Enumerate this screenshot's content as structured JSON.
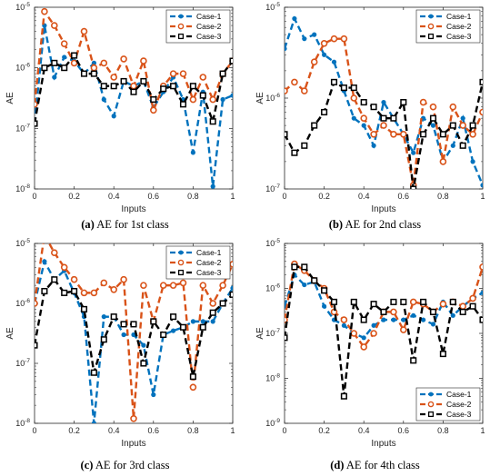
{
  "captions": [
    {
      "letter": "(a)",
      "text": " AE for 1st class"
    },
    {
      "letter": "(b)",
      "text": " AE for 2nd class"
    },
    {
      "letter": "(c)",
      "text": " AE for 3rd class"
    },
    {
      "letter": "(d)",
      "text": " AE for 4th class"
    }
  ],
  "colors": {
    "Case-1": "#0072BD",
    "Case-2": "#D95319",
    "Case-3": "#000000"
  },
  "chart_data": [
    {
      "type": "line",
      "xlabel": "Inputs",
      "ylabel": "AE",
      "yscale": "log",
      "xlim": [
        0,
        1
      ],
      "xticks": [
        0,
        0.2,
        0.4,
        0.6,
        0.8,
        1
      ],
      "ylim_exp": [
        -8,
        -5
      ],
      "legend": "top-right",
      "x": [
        0,
        0.05,
        0.1,
        0.15,
        0.2,
        0.25,
        0.3,
        0.35,
        0.4,
        0.45,
        0.5,
        0.55,
        0.6,
        0.65,
        0.7,
        0.75,
        0.8,
        0.85,
        0.9,
        0.95,
        1
      ],
      "series": [
        {
          "name": "Case-1",
          "values": [
            1.2e-07,
            5e-06,
            7e-07,
            1.5e-06,
            1.3e-06,
            8e-07,
            1.2e-06,
            3e-07,
            1.6e-07,
            6e-07,
            5e-07,
            6e-07,
            2.2e-07,
            4e-07,
            7e-07,
            3e-07,
            4e-08,
            4e-07,
            1.1e-08,
            3e-07,
            3.5e-07
          ]
        },
        {
          "name": "Case-2",
          "values": [
            2.5e-07,
            8.5e-06,
            5e-06,
            2.5e-06,
            1.2e-06,
            4e-06,
            1e-06,
            1.2e-06,
            7e-07,
            1.4e-06,
            5e-07,
            1.3e-06,
            2e-07,
            5e-07,
            8e-07,
            8e-07,
            3e-07,
            7e-07,
            3e-07,
            8e-07,
            1.3e-06
          ]
        },
        {
          "name": "Case-3",
          "values": [
            1.2e-07,
            1e-06,
            1.2e-06,
            1e-06,
            1.6e-06,
            8e-07,
            8e-07,
            5e-07,
            5e-07,
            6e-07,
            4e-07,
            6e-07,
            3e-07,
            4.5e-07,
            5e-07,
            2.5e-07,
            5e-07,
            3.5e-07,
            1.3e-07,
            8e-07,
            1.3e-06
          ]
        }
      ]
    },
    {
      "type": "line",
      "xlabel": "Inputs",
      "ylabel": "AE",
      "yscale": "log",
      "xlim": [
        0,
        1
      ],
      "xticks": [
        0,
        0.2,
        0.4,
        0.6,
        0.8,
        1
      ],
      "ylim_exp": [
        -7,
        -5
      ],
      "legend": "top-right",
      "x": [
        0,
        0.05,
        0.1,
        0.15,
        0.2,
        0.25,
        0.3,
        0.35,
        0.4,
        0.45,
        0.5,
        0.55,
        0.6,
        0.65,
        0.7,
        0.75,
        0.8,
        0.85,
        0.9,
        0.95,
        1
      ],
      "series": [
        {
          "name": "Case-1",
          "values": [
            3.5e-06,
            7.5e-06,
            4.5e-06,
            5e-06,
            3e-06,
            2.5e-06,
            1.2e-06,
            6e-07,
            5e-07,
            3e-07,
            9e-07,
            6e-07,
            4e-07,
            2.5e-07,
            6e-07,
            5e-07,
            2e-07,
            3e-07,
            6e-07,
            2e-07,
            1.1e-07
          ]
        },
        {
          "name": "Case-2",
          "values": [
            1.2e-06,
            1.5e-06,
            1.2e-06,
            2.5e-06,
            4e-06,
            4.5e-06,
            4.5e-06,
            1e-06,
            6e-07,
            4e-07,
            5e-07,
            4e-07,
            4e-07,
            1.1e-07,
            9e-07,
            8e-07,
            2e-07,
            8e-07,
            5e-07,
            4e-07,
            7e-07
          ]
        },
        {
          "name": "Case-3",
          "values": [
            4e-07,
            2.5e-07,
            3e-07,
            5e-07,
            7e-07,
            1.5e-06,
            1.3e-06,
            1.3e-06,
            9e-07,
            8e-07,
            6e-07,
            6e-07,
            9e-07,
            1e-07,
            4e-07,
            6e-07,
            4e-07,
            5e-07,
            3e-07,
            5e-07,
            1.5e-06
          ]
        }
      ]
    },
    {
      "type": "line",
      "xlabel": "Inputs",
      "ylabel": "AE",
      "yscale": "log",
      "xlim": [
        0,
        1
      ],
      "xticks": [
        0,
        0.2,
        0.4,
        0.6,
        0.8,
        1
      ],
      "ylim_exp": [
        -8,
        -5
      ],
      "legend": "top-right",
      "x": [
        0,
        0.05,
        0.1,
        0.15,
        0.2,
        0.25,
        0.3,
        0.35,
        0.4,
        0.45,
        0.5,
        0.55,
        0.6,
        0.65,
        0.7,
        0.75,
        0.8,
        0.85,
        0.9,
        0.95,
        1
      ],
      "series": [
        {
          "name": "Case-1",
          "values": [
            1e-06,
            5e-06,
            2.5e-06,
            3.5e-06,
            1.5e-06,
            6e-07,
            1e-08,
            6e-07,
            6e-07,
            3e-07,
            3e-07,
            2e-07,
            3e-08,
            3e-07,
            3.5e-07,
            4e-07,
            5e-07,
            5e-07,
            5e-07,
            1e-06,
            1.8e-06
          ]
        },
        {
          "name": "Case-2",
          "values": [
            1e-06,
            1.4e-05,
            7e-06,
            4e-06,
            2.5e-06,
            1.5e-06,
            1.5e-06,
            2.2e-06,
            1.7e-06,
            2.5e-06,
            1.2e-08,
            2e-06,
            5e-07,
            2e-06,
            2e-06,
            2.2e-06,
            4e-08,
            2e-06,
            1e-06,
            2e-06,
            4.5e-06
          ]
        },
        {
          "name": "Case-3",
          "values": [
            2e-07,
            1.6e-06,
            2.5e-06,
            1.5e-06,
            1.6e-06,
            8e-07,
            7e-08,
            2.5e-07,
            6e-07,
            4.5e-07,
            4.5e-07,
            1e-07,
            5e-07,
            3e-07,
            6e-07,
            4e-07,
            6e-08,
            4e-07,
            7e-07,
            1e-06,
            1.4e-06
          ]
        }
      ]
    },
    {
      "type": "line",
      "xlabel": "Inputs",
      "ylabel": "AE",
      "yscale": "log",
      "xlim": [
        0,
        1
      ],
      "xticks": [
        0,
        0.2,
        0.4,
        0.6,
        0.8,
        1
      ],
      "ylim_exp": [
        -9,
        -5
      ],
      "legend": "bottom-right",
      "x": [
        0,
        0.05,
        0.1,
        0.15,
        0.2,
        0.25,
        0.3,
        0.35,
        0.4,
        0.45,
        0.5,
        0.55,
        0.6,
        0.65,
        0.7,
        0.75,
        0.8,
        0.85,
        0.9,
        0.95,
        1
      ],
      "series": [
        {
          "name": "Case-1",
          "values": [
            4e-07,
            2e-06,
            1.2e-06,
            1.4e-06,
            4e-07,
            2e-07,
            1.5e-07,
            1e-07,
            8e-08,
            1.5e-07,
            2e-07,
            2e-07,
            2e-07,
            2.5e-07,
            2e-07,
            1.6e-07,
            5e-07,
            2.5e-07,
            4e-07,
            6e-07,
            8e-07
          ]
        },
        {
          "name": "Case-2",
          "values": [
            2e-07,
            3.5e-06,
            2.5e-06,
            1.5e-06,
            1e-06,
            3e-07,
            2e-07,
            1e-07,
            5e-08,
            1e-07,
            3e-07,
            3e-07,
            1.2e-07,
            5e-07,
            4.5e-07,
            3e-07,
            4.5e-07,
            5e-07,
            4e-07,
            6e-07,
            3e-06
          ]
        },
        {
          "name": "Case-3",
          "values": [
            8e-08,
            3e-06,
            3e-06,
            1.5e-06,
            9e-07,
            5e-07,
            4e-09,
            5e-07,
            2e-07,
            4.5e-07,
            3e-07,
            5e-07,
            5e-07,
            2.5e-08,
            5e-07,
            3e-07,
            3.5e-08,
            5e-07,
            3e-07,
            4e-07,
            2e-07
          ]
        }
      ]
    }
  ]
}
